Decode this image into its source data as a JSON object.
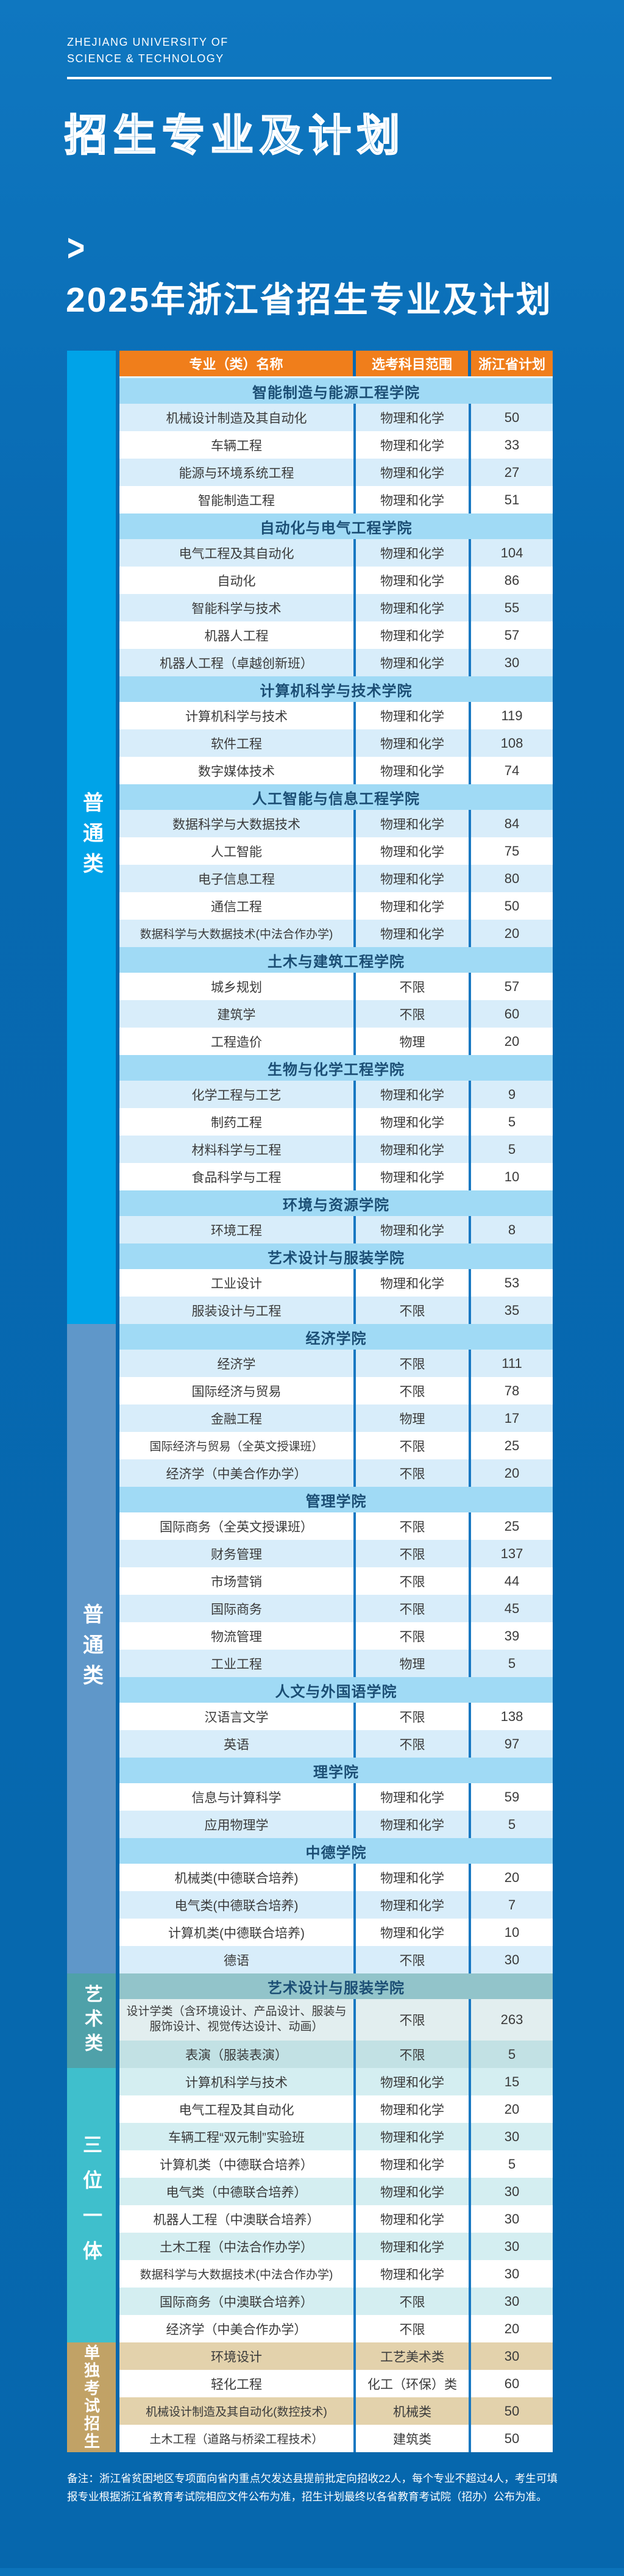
{
  "header": {
    "logo_line1": "ZHEJIANG UNIVERSITY OF",
    "logo_line2": "SCIENCE & TECHNOLOGY",
    "outline_title": "招生专业及计划",
    "chevron": ">",
    "main_title": "2025年浙江省招生专业及计划"
  },
  "colors": {
    "header_orange": "#F07E1B",
    "page_blue": "#0769B1",
    "separator_blue": "#1878C2"
  },
  "table": {
    "columns": [
      "专业（类）名称",
      "选考科目范围",
      "浙江省计划"
    ],
    "segments": [
      {
        "label": "普通类",
        "color": "#00A3E8",
        "theme": {
          "band_bg": "#A0DAF5",
          "band_text": "#1b4e74",
          "row_bgs": [
            "#D8EDFA",
            "#FFFFFF"
          ]
        },
        "sections": [
          {
            "college": "智能制造与能源工程学院",
            "rows": [
              {
                "major": "机械设计制造及其自动化",
                "subjects": "物理和化学",
                "plan": "50"
              },
              {
                "major": "车辆工程",
                "subjects": "物理和化学",
                "plan": "33"
              },
              {
                "major": "能源与环境系统工程",
                "subjects": "物理和化学",
                "plan": "27"
              },
              {
                "major": "智能制造工程",
                "subjects": "物理和化学",
                "plan": "51"
              }
            ]
          },
          {
            "college": "自动化与电气工程学院",
            "rows": [
              {
                "major": "电气工程及其自动化",
                "subjects": "物理和化学",
                "plan": "104"
              },
              {
                "major": "自动化",
                "subjects": "物理和化学",
                "plan": "86"
              },
              {
                "major": "智能科学与技术",
                "subjects": "物理和化学",
                "plan": "55"
              },
              {
                "major": "机器人工程",
                "subjects": "物理和化学",
                "plan": "57"
              },
              {
                "major": "机器人工程（卓越创新班）",
                "subjects": "物理和化学",
                "plan": "30"
              }
            ]
          },
          {
            "college": "计算机科学与技术学院",
            "rows": [
              {
                "major": "计算机科学与技术",
                "subjects": "物理和化学",
                "plan": "119"
              },
              {
                "major": "软件工程",
                "subjects": "物理和化学",
                "plan": "108"
              },
              {
                "major": "数字媒体技术",
                "subjects": "物理和化学",
                "plan": "74"
              }
            ]
          },
          {
            "college": "人工智能与信息工程学院",
            "rows": [
              {
                "major": "数据科学与大数据技术",
                "subjects": "物理和化学",
                "plan": "84"
              },
              {
                "major": "人工智能",
                "subjects": "物理和化学",
                "plan": "75"
              },
              {
                "major": "电子信息工程",
                "subjects": "物理和化学",
                "plan": "80"
              },
              {
                "major": "通信工程",
                "subjects": "物理和化学",
                "plan": "50"
              },
              {
                "major": "数据科学与大数据技术(中法合作办学)",
                "subjects": "物理和化学",
                "plan": "20"
              }
            ]
          },
          {
            "college": "土木与建筑工程学院",
            "rows": [
              {
                "major": "城乡规划",
                "subjects": "不限",
                "plan": "57"
              },
              {
                "major": "建筑学",
                "subjects": "不限",
                "plan": "60"
              },
              {
                "major": "工程造价",
                "subjects": "物理",
                "plan": "20"
              }
            ]
          },
          {
            "college": "生物与化学工程学院",
            "rows": [
              {
                "major": "化学工程与工艺",
                "subjects": "物理和化学",
                "plan": "9"
              },
              {
                "major": "制药工程",
                "subjects": "物理和化学",
                "plan": "5"
              },
              {
                "major": "材料科学与工程",
                "subjects": "物理和化学",
                "plan": "5"
              },
              {
                "major": "食品科学与工程",
                "subjects": "物理和化学",
                "plan": "10"
              }
            ]
          },
          {
            "college": "环境与资源学院",
            "rows": [
              {
                "major": "环境工程",
                "subjects": "物理和化学",
                "plan": "8"
              }
            ]
          },
          {
            "college": "艺术设计与服装学院",
            "rows": [
              {
                "major": "工业设计",
                "subjects": "物理和化学",
                "plan": "53"
              },
              {
                "major": "服装设计与工程",
                "subjects": "不限",
                "plan": "35"
              }
            ]
          }
        ]
      },
      {
        "label": "普通类",
        "color": "#5F97C9",
        "theme": {
          "band_bg": "#A0DAF5",
          "band_text": "#1b4e74",
          "row_bgs": [
            "#D8EDFA",
            "#FFFFFF"
          ]
        },
        "sections": [
          {
            "college": "经济学院",
            "rows": [
              {
                "major": "经济学",
                "subjects": "不限",
                "plan": "111"
              },
              {
                "major": "国际经济与贸易",
                "subjects": "不限",
                "plan": "78"
              },
              {
                "major": "金融工程",
                "subjects": "物理",
                "plan": "17"
              },
              {
                "major": "国际经济与贸易（全英文授课班）",
                "subjects": "不限",
                "plan": "25"
              },
              {
                "major": "经济学（中美合作办学）",
                "subjects": "不限",
                "plan": "20"
              }
            ]
          },
          {
            "college": "管理学院",
            "rows": [
              {
                "major": "国际商务（全英文授课班）",
                "subjects": "不限",
                "plan": "25"
              },
              {
                "major": "财务管理",
                "subjects": "不限",
                "plan": "137"
              },
              {
                "major": "市场营销",
                "subjects": "不限",
                "plan": "44"
              },
              {
                "major": "国际商务",
                "subjects": "不限",
                "plan": "45"
              },
              {
                "major": "物流管理",
                "subjects": "不限",
                "plan": "39"
              },
              {
                "major": "工业工程",
                "subjects": "物理",
                "plan": "5"
              }
            ]
          },
          {
            "college": "人文与外国语学院",
            "rows": [
              {
                "major": "汉语言文学",
                "subjects": "不限",
                "plan": "138"
              },
              {
                "major": "英语",
                "subjects": "不限",
                "plan": "97"
              }
            ]
          },
          {
            "college": "理学院",
            "rows": [
              {
                "major": "信息与计算科学",
                "subjects": "物理和化学",
                "plan": "59"
              },
              {
                "major": "应用物理学",
                "subjects": "物理和化学",
                "plan": "5"
              }
            ]
          },
          {
            "college": "中德学院",
            "rows": [
              {
                "major": "机械类(中德联合培养)",
                "subjects": "物理和化学",
                "plan": "20"
              },
              {
                "major": "电气类(中德联合培养)",
                "subjects": "物理和化学",
                "plan": "7"
              },
              {
                "major": "计算机类(中德联合培养)",
                "subjects": "物理和化学",
                "plan": "10"
              },
              {
                "major": "德语",
                "subjects": "不限",
                "plan": "30"
              }
            ]
          }
        ]
      },
      {
        "label": "艺术类",
        "color": "#4FA1A9",
        "theme": {
          "band_bg": "#92C4CA",
          "band_text": "#1b4e74",
          "row_bgs": [
            "#E2EEEF",
            "#C2E1E4"
          ]
        },
        "sections": [
          {
            "college": "艺术设计与服装学院",
            "rows": [
              {
                "major": "设计学类（含环境设计、产品设计、服装与服饰设计、视觉传达设计、动画）",
                "subjects": "不限",
                "plan": "263",
                "tall": true
              },
              {
                "major": "表演（服装表演）",
                "subjects": "不限",
                "plan": "5"
              }
            ]
          }
        ]
      },
      {
        "label": "三位一体",
        "color": "#3FBFCC",
        "theme": {
          "band_bg": "#A0DAF5",
          "band_text": "#1b4e74",
          "row_bgs": [
            "#D4EEF1",
            "#FFFFFF"
          ]
        },
        "sections": [
          {
            "college": null,
            "rows": [
              {
                "major": "计算机科学与技术",
                "subjects": "物理和化学",
                "plan": "15"
              },
              {
                "major": "电气工程及其自动化",
                "subjects": "物理和化学",
                "plan": "20"
              },
              {
                "major": "车辆工程“双元制”实验班",
                "subjects": "物理和化学",
                "plan": "30"
              },
              {
                "major": "计算机类（中德联合培养）",
                "subjects": "物理和化学",
                "plan": "5"
              },
              {
                "major": "电气类（中德联合培养）",
                "subjects": "物理和化学",
                "plan": "30"
              },
              {
                "major": "机器人工程（中澳联合培养）",
                "subjects": "物理和化学",
                "plan": "30"
              },
              {
                "major": "土木工程（中法合作办学）",
                "subjects": "物理和化学",
                "plan": "30"
              },
              {
                "major": "数据科学与大数据技术(中法合作办学)",
                "subjects": "物理和化学",
                "plan": "30"
              },
              {
                "major": "国际商务（中澳联合培养）",
                "subjects": "不限",
                "plan": "30"
              },
              {
                "major": "经济学（中美合作办学）",
                "subjects": "不限",
                "plan": "20"
              }
            ]
          }
        ]
      },
      {
        "label": "单独考试招生",
        "color": "#C1A266",
        "theme": {
          "band_bg": "#E3D2AC",
          "band_text": "#1b4e74",
          "row_bgs": [
            "#E3D2AC",
            "#FFFFFF"
          ]
        },
        "sections": [
          {
            "college": null,
            "rows": [
              {
                "major": "环境设计",
                "subjects": "工艺美术类",
                "plan": "30"
              },
              {
                "major": "轻化工程",
                "subjects": "化工（环保）类",
                "plan": "60"
              },
              {
                "major": "机械设计制造及其自动化(数控技术)",
                "subjects": "机械类",
                "plan": "50"
              },
              {
                "major": "土木工程（道路与桥梁工程技术）",
                "subjects": "建筑类",
                "plan": "50"
              }
            ]
          }
        ]
      }
    ]
  },
  "footer_note": "备注：浙江省贫困地区专项面向省内重点欠发达县提前批定向招收22人，每个专业不超过4人，考生可填报专业根据浙江省教育考试院相应文件公布为准，招生计划最终以各省教育考试院（招办）公布为准。"
}
